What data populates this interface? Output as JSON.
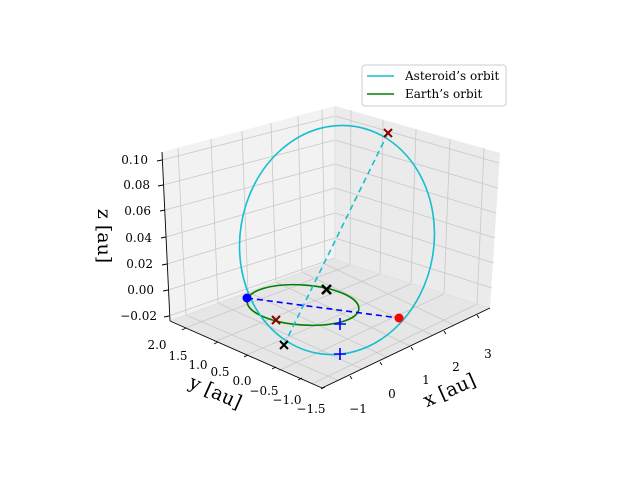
{
  "chart_data": {
    "type": "3d-line",
    "axes": {
      "x": {
        "label": "x [au]",
        "ticks": [
          "−1",
          "0",
          "1",
          "2",
          "3"
        ],
        "range": [
          -1.5,
          3.5
        ]
      },
      "y": {
        "label": "y [au]",
        "ticks": [
          "2.0",
          "1.5",
          "1.0",
          "0.5",
          "0.0",
          "−0.5",
          "−1.0",
          "−1.5"
        ],
        "range": [
          -1.5,
          2.0
        ]
      },
      "z": {
        "label": "z [au]",
        "ticks": [
          "0.10",
          "0.08",
          "0.06",
          "0.04",
          "0.02",
          "0.00",
          "−0.02"
        ],
        "range": [
          -0.02,
          0.1
        ]
      }
    },
    "grid": true,
    "legend": {
      "placement": "top-right",
      "entries": [
        {
          "label": "Asteroid’s orbit",
          "color": "#17becf"
        },
        {
          "label": "Earth’s orbit",
          "color": "#008000"
        }
      ]
    },
    "colors": {
      "asteroid": "#17becf",
      "earth": "#008000",
      "line_of_nodes": "#0000ff",
      "perihelion": "#ff0000",
      "node": "#0000ff",
      "marker": "#000000"
    }
  }
}
